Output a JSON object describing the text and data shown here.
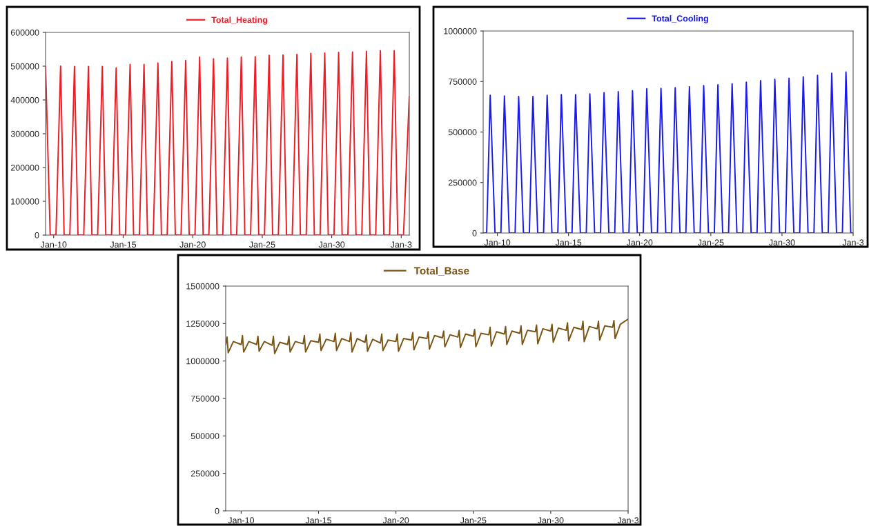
{
  "chart_data": [
    {
      "type": "line",
      "legend": "top",
      "grid": false,
      "xlim": [
        "2009-06",
        "2035-08"
      ],
      "ylim": [
        0,
        600000
      ],
      "xticks": [
        {
          "value": "2010-01",
          "label": "Jan-10"
        },
        {
          "value": "2015-01",
          "label": "Jan-15"
        },
        {
          "value": "2020-01",
          "label": "Jan-20"
        },
        {
          "value": "2025-01",
          "label": "Jan-25"
        },
        {
          "value": "2030-01",
          "label": "Jan-30"
        },
        {
          "value": "2035-01",
          "label": "Jan-3"
        }
      ],
      "yticks": [
        0,
        100000,
        200000,
        300000,
        400000,
        500000,
        600000
      ],
      "series": [
        {
          "name": "Total_Heating",
          "color": "#ee1c25",
          "x": [
            "2009-06",
            "2009-10",
            "2010-03",
            "2010-07",
            "2010-10",
            "2011-03",
            "2011-07",
            "2011-10",
            "2012-03",
            "2012-07",
            "2012-10",
            "2013-03",
            "2013-07",
            "2013-10",
            "2014-03",
            "2014-07",
            "2014-10",
            "2015-03",
            "2015-07",
            "2015-10",
            "2016-03",
            "2016-07",
            "2016-10",
            "2017-03",
            "2017-07",
            "2017-10",
            "2018-03",
            "2018-07",
            "2018-10",
            "2019-03",
            "2019-07",
            "2019-10",
            "2020-03",
            "2020-07",
            "2020-10",
            "2021-03",
            "2021-07",
            "2021-10",
            "2022-03",
            "2022-07",
            "2022-10",
            "2023-03",
            "2023-07",
            "2023-10",
            "2024-03",
            "2024-07",
            "2024-10",
            "2025-03",
            "2025-07",
            "2025-10",
            "2026-03",
            "2026-07",
            "2026-10",
            "2027-03",
            "2027-07",
            "2027-10",
            "2028-03",
            "2028-07",
            "2028-10",
            "2029-03",
            "2029-07",
            "2029-10",
            "2030-03",
            "2030-07",
            "2030-10",
            "2031-03",
            "2031-07",
            "2031-10",
            "2032-03",
            "2032-07",
            "2032-10",
            "2033-03",
            "2033-07",
            "2033-10",
            "2034-03",
            "2034-07",
            "2034-10",
            "2035-03",
            "2035-08"
          ],
          "values": [
            498000,
            0,
            0,
            500000,
            0,
            0,
            499000,
            0,
            0,
            499000,
            0,
            0,
            499000,
            0,
            0,
            495000,
            0,
            0,
            505000,
            0,
            0,
            505000,
            0,
            0,
            509000,
            0,
            0,
            514000,
            0,
            0,
            517000,
            0,
            0,
            527000,
            0,
            0,
            522000,
            0,
            0,
            524000,
            0,
            0,
            527000,
            0,
            0,
            528000,
            0,
            0,
            532000,
            0,
            0,
            533000,
            0,
            0,
            535000,
            0,
            0,
            538000,
            0,
            0,
            539000,
            0,
            0,
            541000,
            0,
            0,
            542000,
            0,
            0,
            544000,
            0,
            0,
            546000,
            0,
            0,
            546000,
            0,
            0,
            410000
          ]
        }
      ]
    },
    {
      "type": "line",
      "legend": "top",
      "grid": false,
      "xlim": [
        "2009-01",
        "2035-01"
      ],
      "ylim": [
        0,
        1000000
      ],
      "xticks": [
        {
          "value": "2010-01",
          "label": "Jan-10"
        },
        {
          "value": "2015-01",
          "label": "Jan-15"
        },
        {
          "value": "2020-01",
          "label": "Jan-20"
        },
        {
          "value": "2025-01",
          "label": "Jan-25"
        },
        {
          "value": "2030-01",
          "label": "Jan-30"
        },
        {
          "value": "2035-01",
          "label": "Jan-3"
        }
      ],
      "yticks": [
        0,
        250000,
        500000,
        750000,
        1000000
      ],
      "series": [
        {
          "name": "Total_Cooling",
          "color": "#1a1aee",
          "x": [
            "2009-01",
            "2009-04",
            "2009-07",
            "2009-11",
            "2010-04",
            "2010-07",
            "2010-11",
            "2011-04",
            "2011-07",
            "2011-11",
            "2012-04",
            "2012-07",
            "2012-11",
            "2013-04",
            "2013-07",
            "2013-11",
            "2014-04",
            "2014-07",
            "2014-11",
            "2015-04",
            "2015-07",
            "2015-11",
            "2016-04",
            "2016-07",
            "2016-11",
            "2017-04",
            "2017-07",
            "2017-11",
            "2018-04",
            "2018-07",
            "2018-11",
            "2019-04",
            "2019-07",
            "2019-11",
            "2020-04",
            "2020-07",
            "2020-11",
            "2021-04",
            "2021-07",
            "2021-11",
            "2022-04",
            "2022-07",
            "2022-11",
            "2023-04",
            "2023-07",
            "2023-11",
            "2024-04",
            "2024-07",
            "2024-11",
            "2025-04",
            "2025-07",
            "2025-11",
            "2026-04",
            "2026-07",
            "2026-11",
            "2027-04",
            "2027-07",
            "2027-11",
            "2028-04",
            "2028-07",
            "2028-11",
            "2029-04",
            "2029-07",
            "2029-11",
            "2030-04",
            "2030-07",
            "2030-11",
            "2031-04",
            "2031-07",
            "2031-11",
            "2032-04",
            "2032-07",
            "2032-11",
            "2033-04",
            "2033-07",
            "2033-11",
            "2034-04",
            "2034-07",
            "2034-11",
            "2035-01"
          ],
          "values": [
            0,
            0,
            682000,
            0,
            0,
            678000,
            0,
            0,
            676000,
            0,
            0,
            676000,
            0,
            0,
            682000,
            0,
            0,
            685000,
            0,
            0,
            685000,
            0,
            0,
            689000,
            0,
            0,
            695000,
            0,
            0,
            700000,
            0,
            0,
            705000,
            0,
            0,
            714000,
            0,
            0,
            716000,
            0,
            0,
            719000,
            0,
            0,
            724000,
            0,
            0,
            730000,
            0,
            0,
            734000,
            0,
            0,
            739000,
            0,
            0,
            747000,
            0,
            0,
            754000,
            0,
            0,
            761000,
            0,
            0,
            766000,
            0,
            0,
            773000,
            0,
            0,
            781000,
            0,
            0,
            791000,
            0,
            0,
            797000,
            0,
            0
          ]
        }
      ]
    },
    {
      "type": "line",
      "legend": "top",
      "grid": false,
      "xlim": [
        "2009-01",
        "2035-01"
      ],
      "ylim": [
        0,
        1500000
      ],
      "xticks": [
        {
          "value": "2010-01",
          "label": "Jan-10"
        },
        {
          "value": "2015-01",
          "label": "Jan-15"
        },
        {
          "value": "2020-01",
          "label": "Jan-20"
        },
        {
          "value": "2025-01",
          "label": "Jan-25"
        },
        {
          "value": "2030-01",
          "label": "Jan-30"
        },
        {
          "value": "2035-01",
          "label": "Jan-3"
        }
      ],
      "yticks": [
        0,
        250000,
        500000,
        750000,
        1000000,
        1250000,
        1500000
      ],
      "series": [
        {
          "name": "Total_Base",
          "color": "#7a5412",
          "x": [
            "2009-01",
            "2009-02",
            "2009-03",
            "2009-07",
            "2010-01",
            "2010-02",
            "2010-03",
            "2010-07",
            "2011-01",
            "2011-02",
            "2011-03",
            "2011-07",
            "2012-01",
            "2012-02",
            "2012-03",
            "2012-07",
            "2013-01",
            "2013-02",
            "2013-03",
            "2013-07",
            "2014-01",
            "2014-02",
            "2014-03",
            "2014-07",
            "2015-01",
            "2015-02",
            "2015-03",
            "2015-07",
            "2016-01",
            "2016-02",
            "2016-03",
            "2016-07",
            "2017-01",
            "2017-02",
            "2017-03",
            "2017-07",
            "2018-01",
            "2018-02",
            "2018-03",
            "2018-07",
            "2019-01",
            "2019-02",
            "2019-03",
            "2019-07",
            "2020-01",
            "2020-02",
            "2020-03",
            "2020-07",
            "2021-01",
            "2021-02",
            "2021-03",
            "2021-07",
            "2022-01",
            "2022-02",
            "2022-03",
            "2022-07",
            "2023-01",
            "2023-02",
            "2023-03",
            "2023-07",
            "2024-01",
            "2024-02",
            "2024-03",
            "2024-07",
            "2025-01",
            "2025-02",
            "2025-03",
            "2025-07",
            "2026-01",
            "2026-02",
            "2026-03",
            "2026-07",
            "2027-01",
            "2027-02",
            "2027-03",
            "2027-07",
            "2028-01",
            "2028-02",
            "2028-03",
            "2028-07",
            "2029-01",
            "2029-02",
            "2029-03",
            "2029-07",
            "2030-01",
            "2030-02",
            "2030-03",
            "2030-07",
            "2031-01",
            "2031-02",
            "2031-03",
            "2031-07",
            "2032-01",
            "2032-02",
            "2032-03",
            "2032-07",
            "2033-01",
            "2033-02",
            "2033-03",
            "2033-07",
            "2034-01",
            "2034-02",
            "2034-03",
            "2034-07",
            "2035-01"
          ],
          "values": [
            1110000,
            1160000,
            1055000,
            1130000,
            1110000,
            1170000,
            1060000,
            1130000,
            1110000,
            1165000,
            1065000,
            1130000,
            1105000,
            1165000,
            1050000,
            1125000,
            1110000,
            1165000,
            1060000,
            1130000,
            1115000,
            1170000,
            1060000,
            1135000,
            1125000,
            1180000,
            1070000,
            1145000,
            1130000,
            1185000,
            1070000,
            1150000,
            1130000,
            1190000,
            1060000,
            1150000,
            1125000,
            1175000,
            1065000,
            1145000,
            1120000,
            1180000,
            1070000,
            1140000,
            1130000,
            1180000,
            1065000,
            1150000,
            1140000,
            1190000,
            1075000,
            1160000,
            1150000,
            1195000,
            1080000,
            1170000,
            1155000,
            1200000,
            1095000,
            1175000,
            1160000,
            1205000,
            1090000,
            1180000,
            1165000,
            1210000,
            1095000,
            1185000,
            1175000,
            1225000,
            1100000,
            1195000,
            1180000,
            1230000,
            1110000,
            1200000,
            1185000,
            1235000,
            1110000,
            1205000,
            1195000,
            1240000,
            1115000,
            1215000,
            1200000,
            1245000,
            1125000,
            1220000,
            1205000,
            1255000,
            1135000,
            1225000,
            1210000,
            1265000,
            1130000,
            1230000,
            1215000,
            1265000,
            1140000,
            1235000,
            1225000,
            1270000,
            1150000,
            1245000,
            1280000
          ]
        }
      ]
    }
  ]
}
